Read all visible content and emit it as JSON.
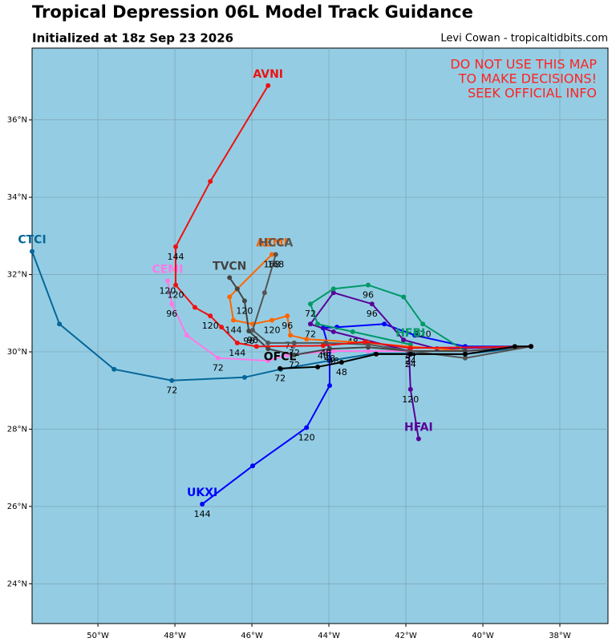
{
  "chart_data": {
    "type": "line",
    "title": "Tropical Depression 06L Model Track Guidance",
    "subtitle": "Initialized at 18z Sep 23 2026",
    "credit": "Levi Cowan - tropicaltidbits.com",
    "annotation": [
      "DO NOT USE THIS MAP",
      "TO MAKE DECISIONS!",
      "SEEK OFFICIAL INFO"
    ],
    "xlim": [
      -51.71,
      -36.75
    ],
    "ylim": [
      22.97,
      37.86
    ],
    "xticks": [
      {
        "value": -50,
        "label": "50°W"
      },
      {
        "value": -48,
        "label": "48°W"
      },
      {
        "value": -46,
        "label": "46°W"
      },
      {
        "value": -44,
        "label": "44°W"
      },
      {
        "value": -42,
        "label": "42°W"
      },
      {
        "value": -40,
        "label": "40°W"
      },
      {
        "value": -38,
        "label": "38°W"
      }
    ],
    "yticks": [
      {
        "value": 24,
        "label": "24°N"
      },
      {
        "value": 26,
        "label": "26°N"
      },
      {
        "value": 28,
        "label": "28°N"
      },
      {
        "value": 30,
        "label": "30°N"
      },
      {
        "value": 32,
        "label": "32°N"
      },
      {
        "value": 34,
        "label": "34°N"
      },
      {
        "value": 36,
        "label": "36°N"
      }
    ],
    "grid": true,
    "series": [
      {
        "name": "CTCI",
        "color": "#05679a",
        "x": [
          -38.75,
          -40.46,
          -42.79,
          -44.0,
          -45.25,
          -46.19,
          -48.08,
          -49.58,
          -51.0,
          -51.71
        ],
        "values": [
          30.14,
          29.94,
          29.96,
          29.77,
          29.55,
          29.34,
          29.26,
          29.55,
          30.72,
          32.6
        ],
        "point_labels": [
          null,
          null,
          null,
          null,
          null,
          null,
          72,
          null,
          null,
          null
        ]
      },
      {
        "name": "UKXI",
        "color": "#0000ff",
        "x": [
          -38.75,
          -40.46,
          -41.77,
          -42.56,
          -43.79,
          -44.15,
          -43.98,
          -43.98,
          -44.58,
          -45.98,
          -47.29
        ],
        "values": [
          30.14,
          30.14,
          30.43,
          30.72,
          30.64,
          30.62,
          30.02,
          29.13,
          28.04,
          27.05,
          26.06
        ],
        "point_labels": [
          null,
          null,
          null,
          null,
          null,
          null,
          null,
          null,
          120,
          null,
          144
        ]
      },
      {
        "name": "HFAI",
        "color": "#5a0099",
        "x": [
          -38.75,
          -41.19,
          -42.06,
          -42.88,
          -43.88,
          -44.48,
          -43.88,
          -41.92,
          -41.88,
          -41.67
        ],
        "values": [
          30.14,
          30.08,
          30.31,
          31.24,
          31.53,
          30.72,
          30.52,
          30.02,
          29.03,
          27.75
        ],
        "point_labels": [
          null,
          null,
          null,
          96,
          null,
          72,
          null,
          null,
          120,
          null
        ]
      },
      {
        "name": "HFBI",
        "color": "#009966",
        "x": [
          -38.75,
          -40.46,
          -41.56,
          -42.06,
          -42.98,
          -43.88,
          -44.48,
          -44.29,
          -43.38,
          -41.88
        ],
        "values": [
          30.14,
          30.02,
          30.72,
          31.42,
          31.73,
          31.63,
          31.24,
          30.72,
          30.52,
          30.19
        ],
        "point_labels": [
          null,
          null,
          120,
          null,
          96,
          null,
          72,
          null,
          48,
          24
        ]
      },
      {
        "name": "AEMI",
        "color": "#ff6600",
        "x": [
          -38.75,
          -40.46,
          -42.98,
          -44.58,
          -45.0,
          -45.08,
          -45.48,
          -45.98,
          -46.48,
          -46.58,
          -46.38,
          -45.48
        ],
        "values": [
          30.14,
          30.02,
          30.23,
          30.33,
          30.43,
          30.93,
          30.82,
          30.72,
          30.82,
          31.42,
          31.63,
          32.52
        ],
        "point_labels": [
          null,
          null,
          null,
          null,
          72,
          96,
          120,
          null,
          144,
          null,
          null,
          168
        ]
      },
      {
        "name": "CEMI",
        "color": "#ff77e8",
        "x": [
          -38.75,
          -40.46,
          -42.98,
          -43.88,
          -45.08,
          -45.58,
          -46.88,
          -47.69,
          -48.08,
          -48.19
        ],
        "values": [
          30.14,
          30.02,
          30.02,
          30.02,
          29.92,
          29.77,
          29.84,
          30.43,
          31.24,
          31.84
        ],
        "point_labels": [
          null,
          null,
          null,
          48,
          null,
          null,
          72,
          null,
          96,
          120
        ]
      },
      {
        "name": "TVCN",
        "color": "#444444",
        "x": [
          -38.75,
          -40.46,
          -41.88,
          -42.98,
          -43.98,
          -44.9,
          -45.58,
          -46.08,
          -46.19,
          -46.38,
          -46.58
        ],
        "values": [
          30.14,
          30.02,
          30.02,
          30.12,
          30.08,
          29.92,
          30.08,
          30.54,
          31.32,
          31.63,
          31.92
        ],
        "point_labels": [
          null,
          null,
          24,
          null,
          48,
          72,
          null,
          96,
          120,
          null,
          null
        ]
      },
      {
        "name": "HCCA",
        "color": "#555555",
        "x": [
          -38.75,
          -40.46,
          -41.88,
          -42.98,
          -44.08,
          -44.9,
          -45.58,
          -45.98,
          -45.67,
          -45.38
        ],
        "values": [
          30.14,
          29.84,
          30.02,
          30.19,
          30.23,
          30.23,
          30.23,
          30.56,
          31.53,
          32.52
        ],
        "point_labels": [
          null,
          null,
          24,
          null,
          48,
          72,
          null,
          96,
          null,
          168
        ]
      },
      {
        "name": "AVNI",
        "color": "#ee1111",
        "x": [
          -38.75,
          -41.88,
          -43.06,
          -44.15,
          -45.88,
          -46.38,
          -46.79,
          -47.08,
          -47.48,
          -47.98,
          -47.98,
          -47.08,
          -45.58
        ],
        "values": [
          30.14,
          30.1,
          30.26,
          30.16,
          30.14,
          30.23,
          30.64,
          30.93,
          31.15,
          31.73,
          32.72,
          34.41,
          36.89
        ],
        "point_labels": [
          null,
          null,
          null,
          48,
          null,
          144,
          null,
          120,
          null,
          120,
          144,
          null,
          null
        ]
      },
      {
        "name": "OFCL",
        "color": "#000000",
        "x": [
          -38.75,
          -39.17,
          -40.46,
          -41.88,
          -42.77,
          -43.67,
          -44.29,
          -45.27
        ],
        "values": [
          30.14,
          30.14,
          29.94,
          29.94,
          29.94,
          29.73,
          29.61,
          29.57
        ],
        "point_labels": [
          null,
          null,
          null,
          24,
          null,
          48,
          null,
          72
        ]
      }
    ]
  }
}
